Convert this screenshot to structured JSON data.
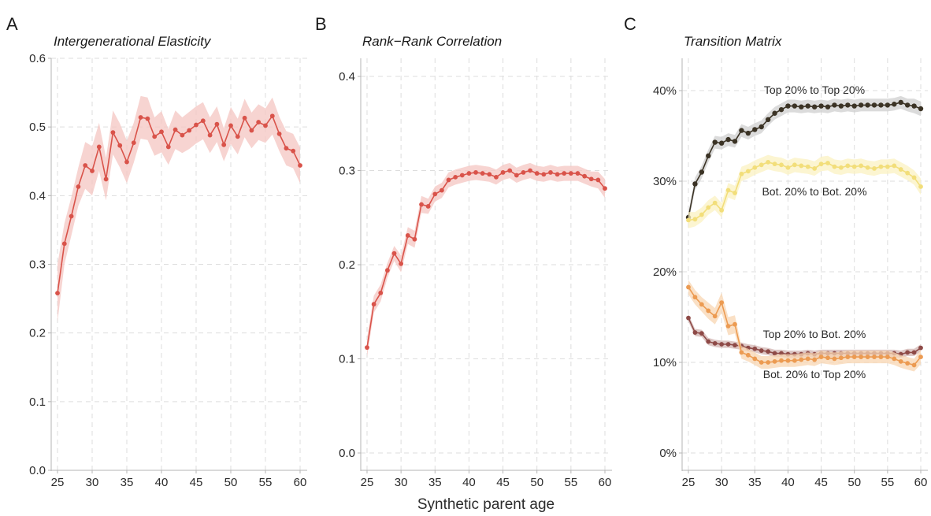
{
  "xlabel": "Synthetic parent age",
  "chart_data": [
    {
      "type": "line",
      "panel_letter": "A",
      "title": "Intergenerational Elasticity",
      "xlabel": "",
      "ylabel": "",
      "xlim": [
        25,
        60
      ],
      "ylim": [
        0.0,
        0.6
      ],
      "xticks": [
        25,
        30,
        35,
        40,
        45,
        50,
        55,
        60
      ],
      "yticks": [
        0.0,
        0.1,
        0.2,
        0.3,
        0.4,
        0.5,
        0.6
      ],
      "ytick_labels": [
        "0.0",
        "0.1",
        "0.2",
        "0.3",
        "0.4",
        "0.5",
        "0.6"
      ],
      "grid": true,
      "series": [
        {
          "color": "#d9534a",
          "band_color": "#f4c6c1",
          "x": [
            25,
            26,
            27,
            28,
            29,
            30,
            31,
            32,
            33,
            34,
            35,
            36,
            37,
            38,
            39,
            40,
            41,
            42,
            43,
            44,
            45,
            46,
            47,
            48,
            49,
            50,
            51,
            52,
            53,
            54,
            55,
            56,
            57,
            58,
            59,
            60
          ],
          "y": [
            0.258,
            0.33,
            0.37,
            0.413,
            0.444,
            0.436,
            0.471,
            0.424,
            0.492,
            0.473,
            0.449,
            0.477,
            0.514,
            0.512,
            0.486,
            0.493,
            0.471,
            0.496,
            0.488,
            0.495,
            0.503,
            0.509,
            0.488,
            0.504,
            0.474,
            0.502,
            0.486,
            0.513,
            0.495,
            0.507,
            0.502,
            0.516,
            0.49,
            0.469,
            0.465,
            0.444
          ],
          "lower": [
            0.216,
            0.3,
            0.342,
            0.385,
            0.41,
            0.4,
            0.436,
            0.393,
            0.46,
            0.441,
            0.418,
            0.448,
            0.483,
            0.481,
            0.458,
            0.463,
            0.445,
            0.468,
            0.462,
            0.468,
            0.476,
            0.482,
            0.462,
            0.478,
            0.45,
            0.475,
            0.46,
            0.485,
            0.469,
            0.481,
            0.477,
            0.489,
            0.465,
            0.444,
            0.44,
            0.418
          ],
          "upper": [
            0.3,
            0.36,
            0.398,
            0.441,
            0.478,
            0.472,
            0.506,
            0.455,
            0.524,
            0.505,
            0.48,
            0.506,
            0.545,
            0.543,
            0.514,
            0.523,
            0.497,
            0.524,
            0.514,
            0.522,
            0.53,
            0.536,
            0.514,
            0.53,
            0.498,
            0.529,
            0.512,
            0.541,
            0.521,
            0.533,
            0.527,
            0.543,
            0.515,
            0.494,
            0.49,
            0.47
          ]
        }
      ]
    },
    {
      "type": "line",
      "panel_letter": "B",
      "title": "Rank−Rank Correlation",
      "xlabel": "",
      "ylabel": "",
      "xlim": [
        25,
        60
      ],
      "ylim": [
        0.0,
        0.4
      ],
      "xticks": [
        25,
        30,
        35,
        40,
        45,
        50,
        55,
        60
      ],
      "yticks": [
        0.0,
        0.1,
        0.2,
        0.3,
        0.4
      ],
      "ytick_labels": [
        "0.0",
        "0.1",
        "0.2",
        "0.3",
        "0.4"
      ],
      "grid": true,
      "series": [
        {
          "color": "#d9534a",
          "band_color": "#f4c6c1",
          "x": [
            25,
            26,
            27,
            28,
            29,
            30,
            31,
            32,
            33,
            34,
            35,
            36,
            37,
            38,
            39,
            40,
            41,
            42,
            43,
            44,
            45,
            46,
            47,
            48,
            49,
            50,
            51,
            52,
            53,
            54,
            55,
            56,
            57,
            58,
            59,
            60
          ],
          "y": [
            0.112,
            0.158,
            0.17,
            0.194,
            0.212,
            0.201,
            0.231,
            0.227,
            0.264,
            0.262,
            0.275,
            0.279,
            0.29,
            0.293,
            0.295,
            0.297,
            0.298,
            0.297,
            0.296,
            0.293,
            0.298,
            0.3,
            0.295,
            0.298,
            0.3,
            0.297,
            0.296,
            0.298,
            0.296,
            0.297,
            0.297,
            0.297,
            0.294,
            0.291,
            0.29,
            0.281
          ],
          "lower": [
            0.102,
            0.149,
            0.161,
            0.186,
            0.204,
            0.192,
            0.222,
            0.218,
            0.255,
            0.254,
            0.267,
            0.271,
            0.282,
            0.285,
            0.287,
            0.289,
            0.29,
            0.289,
            0.288,
            0.285,
            0.29,
            0.292,
            0.287,
            0.29,
            0.292,
            0.289,
            0.288,
            0.29,
            0.288,
            0.289,
            0.289,
            0.289,
            0.286,
            0.283,
            0.281,
            0.271
          ],
          "upper": [
            0.122,
            0.167,
            0.179,
            0.202,
            0.22,
            0.21,
            0.24,
            0.236,
            0.273,
            0.27,
            0.283,
            0.287,
            0.298,
            0.301,
            0.303,
            0.305,
            0.306,
            0.305,
            0.304,
            0.301,
            0.306,
            0.308,
            0.303,
            0.306,
            0.308,
            0.305,
            0.304,
            0.306,
            0.304,
            0.305,
            0.305,
            0.305,
            0.302,
            0.299,
            0.299,
            0.291
          ]
        }
      ]
    },
    {
      "type": "line",
      "panel_letter": "C",
      "title": "Transition Matrix",
      "xlabel": "",
      "ylabel": "",
      "xlim": [
        25,
        60
      ],
      "ylim": [
        0,
        40
      ],
      "xticks": [
        25,
        30,
        35,
        40,
        45,
        50,
        55,
        60
      ],
      "yticks": [
        0,
        10,
        20,
        30,
        40
      ],
      "ytick_labels": [
        "0%",
        "10%",
        "20%",
        "30%",
        "40%"
      ],
      "grid": true,
      "series": [
        {
          "name": "Top 20% to Top 20%",
          "color": "#3b3325",
          "band_color": "#cfcfcf",
          "x": [
            25,
            26,
            27,
            28,
            29,
            30,
            31,
            32,
            33,
            34,
            35,
            36,
            37,
            38,
            39,
            40,
            41,
            42,
            43,
            44,
            45,
            46,
            47,
            48,
            49,
            50,
            51,
            52,
            53,
            54,
            55,
            56,
            57,
            58,
            59,
            60
          ],
          "y": [
            26.0,
            29.7,
            31.0,
            32.8,
            34.3,
            34.2,
            34.6,
            34.4,
            35.6,
            35.3,
            35.7,
            36.0,
            36.8,
            37.5,
            37.9,
            38.3,
            38.3,
            38.2,
            38.3,
            38.2,
            38.3,
            38.2,
            38.4,
            38.3,
            38.4,
            38.3,
            38.4,
            38.4,
            38.4,
            38.4,
            38.4,
            38.5,
            38.7,
            38.4,
            38.3,
            38.0
          ],
          "lower": [
            25.4,
            29.0,
            30.3,
            32.1,
            33.6,
            33.5,
            33.9,
            33.7,
            34.9,
            34.6,
            35.0,
            35.3,
            36.1,
            36.8,
            37.2,
            37.6,
            37.6,
            37.5,
            37.6,
            37.5,
            37.6,
            37.5,
            37.7,
            37.6,
            37.7,
            37.6,
            37.7,
            37.7,
            37.7,
            37.7,
            37.7,
            37.8,
            38.0,
            37.7,
            37.5,
            37.2
          ],
          "upper": [
            26.6,
            30.4,
            31.7,
            33.5,
            35.0,
            34.9,
            35.3,
            35.1,
            36.3,
            36.0,
            36.4,
            36.7,
            37.5,
            38.2,
            38.6,
            39.0,
            39.0,
            38.9,
            39.0,
            38.9,
            39.0,
            38.9,
            39.1,
            39.0,
            39.1,
            39.0,
            39.1,
            39.1,
            39.1,
            39.1,
            39.1,
            39.2,
            39.4,
            39.1,
            39.1,
            38.8
          ]
        },
        {
          "name": "Bot. 20% to Bot. 20%",
          "color": "#f2de7a",
          "band_color": "#fbf1c2",
          "x": [
            25,
            26,
            27,
            28,
            29,
            30,
            31,
            32,
            33,
            34,
            35,
            36,
            37,
            38,
            39,
            40,
            41,
            42,
            43,
            44,
            45,
            46,
            47,
            48,
            49,
            50,
            51,
            52,
            53,
            54,
            55,
            56,
            57,
            58,
            59,
            60
          ],
          "y": [
            25.7,
            25.8,
            26.3,
            27.1,
            27.6,
            26.8,
            29.0,
            28.7,
            30.8,
            31.1,
            31.5,
            31.8,
            32.1,
            31.9,
            31.8,
            31.5,
            31.8,
            31.7,
            31.6,
            31.4,
            31.9,
            32.0,
            31.6,
            31.5,
            31.7,
            31.6,
            31.7,
            31.5,
            31.4,
            31.6,
            31.6,
            31.7,
            31.3,
            30.9,
            30.4,
            29.4
          ],
          "lower": [
            24.8,
            25.0,
            25.5,
            26.3,
            26.8,
            26.0,
            28.2,
            27.9,
            30.0,
            30.3,
            30.7,
            31.0,
            31.3,
            31.1,
            31.0,
            30.7,
            31.0,
            30.9,
            30.8,
            30.6,
            31.1,
            31.2,
            30.8,
            30.7,
            30.9,
            30.8,
            30.9,
            30.7,
            30.6,
            30.8,
            30.8,
            30.9,
            30.5,
            30.1,
            29.6,
            28.5
          ],
          "upper": [
            26.6,
            26.6,
            27.1,
            27.9,
            28.4,
            27.6,
            29.8,
            29.5,
            31.6,
            31.9,
            32.3,
            32.6,
            32.9,
            32.7,
            32.6,
            32.3,
            32.6,
            32.5,
            32.4,
            32.2,
            32.7,
            32.8,
            32.4,
            32.3,
            32.5,
            32.4,
            32.5,
            32.3,
            32.2,
            32.4,
            32.4,
            32.5,
            32.1,
            31.7,
            31.2,
            30.3
          ]
        },
        {
          "name": "Top 20% to Bot. 20%",
          "color": "#8e4a47",
          "band_color": "#d2b4b2",
          "x": [
            25,
            26,
            27,
            28,
            29,
            30,
            31,
            32,
            33,
            34,
            35,
            36,
            37,
            38,
            39,
            40,
            41,
            42,
            43,
            44,
            45,
            46,
            47,
            48,
            49,
            50,
            51,
            52,
            53,
            54,
            55,
            56,
            57,
            58,
            59,
            60
          ],
          "y": [
            14.9,
            13.3,
            13.2,
            12.3,
            12.1,
            12.0,
            12.0,
            11.9,
            11.8,
            11.6,
            11.5,
            11.3,
            11.2,
            11.0,
            11.0,
            10.9,
            10.9,
            10.9,
            11.0,
            10.9,
            11.0,
            11.0,
            11.0,
            11.0,
            11.0,
            11.0,
            11.0,
            11.0,
            11.0,
            11.0,
            11.0,
            11.0,
            10.9,
            11.1,
            11.1,
            11.6
          ],
          "lower": [
            14.5,
            12.9,
            12.8,
            11.9,
            11.7,
            11.6,
            11.6,
            11.5,
            11.4,
            11.2,
            11.1,
            10.9,
            10.8,
            10.6,
            10.6,
            10.5,
            10.5,
            10.5,
            10.6,
            10.5,
            10.6,
            10.6,
            10.6,
            10.6,
            10.6,
            10.6,
            10.6,
            10.6,
            10.6,
            10.6,
            10.6,
            10.6,
            10.5,
            10.7,
            10.7,
            11.2
          ],
          "upper": [
            15.3,
            13.7,
            13.6,
            12.7,
            12.5,
            12.4,
            12.4,
            12.3,
            12.2,
            12.0,
            11.9,
            11.7,
            11.6,
            11.4,
            11.4,
            11.3,
            11.3,
            11.3,
            11.4,
            11.3,
            11.4,
            11.4,
            11.4,
            11.4,
            11.4,
            11.4,
            11.4,
            11.4,
            11.4,
            11.4,
            11.4,
            11.4,
            11.3,
            11.5,
            11.5,
            12.0
          ]
        },
        {
          "name": "Bot. 20% to Top 20%",
          "color": "#ec9b52",
          "band_color": "#f8d5b2",
          "x": [
            25,
            26,
            27,
            28,
            29,
            30,
            31,
            32,
            33,
            34,
            35,
            36,
            37,
            38,
            39,
            40,
            41,
            42,
            43,
            44,
            45,
            46,
            47,
            48,
            49,
            50,
            51,
            52,
            53,
            54,
            55,
            56,
            57,
            58,
            59,
            60
          ],
          "y": [
            18.3,
            17.2,
            16.4,
            15.7,
            15.1,
            16.6,
            14.0,
            14.2,
            11.1,
            10.8,
            10.4,
            10.0,
            10.0,
            10.1,
            10.2,
            10.2,
            10.2,
            10.3,
            10.4,
            10.3,
            10.6,
            10.5,
            10.4,
            10.5,
            10.6,
            10.6,
            10.6,
            10.6,
            10.6,
            10.6,
            10.6,
            10.4,
            10.1,
            9.9,
            9.7,
            10.6
          ],
          "lower": [
            17.5,
            16.4,
            15.6,
            14.8,
            14.2,
            15.5,
            13.0,
            13.2,
            10.4,
            10.1,
            9.7,
            9.3,
            9.3,
            9.4,
            9.5,
            9.5,
            9.5,
            9.6,
            9.7,
            9.6,
            9.9,
            9.8,
            9.7,
            9.8,
            9.9,
            9.9,
            9.9,
            9.9,
            9.9,
            9.9,
            9.9,
            9.7,
            9.4,
            9.2,
            9.0,
            9.8
          ],
          "upper": [
            19.1,
            18.0,
            17.2,
            16.6,
            16.0,
            17.7,
            15.0,
            15.2,
            11.8,
            11.5,
            11.1,
            10.7,
            10.7,
            10.8,
            10.9,
            10.9,
            10.9,
            11.0,
            11.1,
            11.0,
            11.3,
            11.2,
            11.1,
            11.2,
            11.3,
            11.3,
            11.3,
            11.3,
            11.3,
            11.3,
            11.3,
            11.1,
            10.8,
            10.6,
            10.4,
            11.4
          ]
        }
      ]
    }
  ]
}
